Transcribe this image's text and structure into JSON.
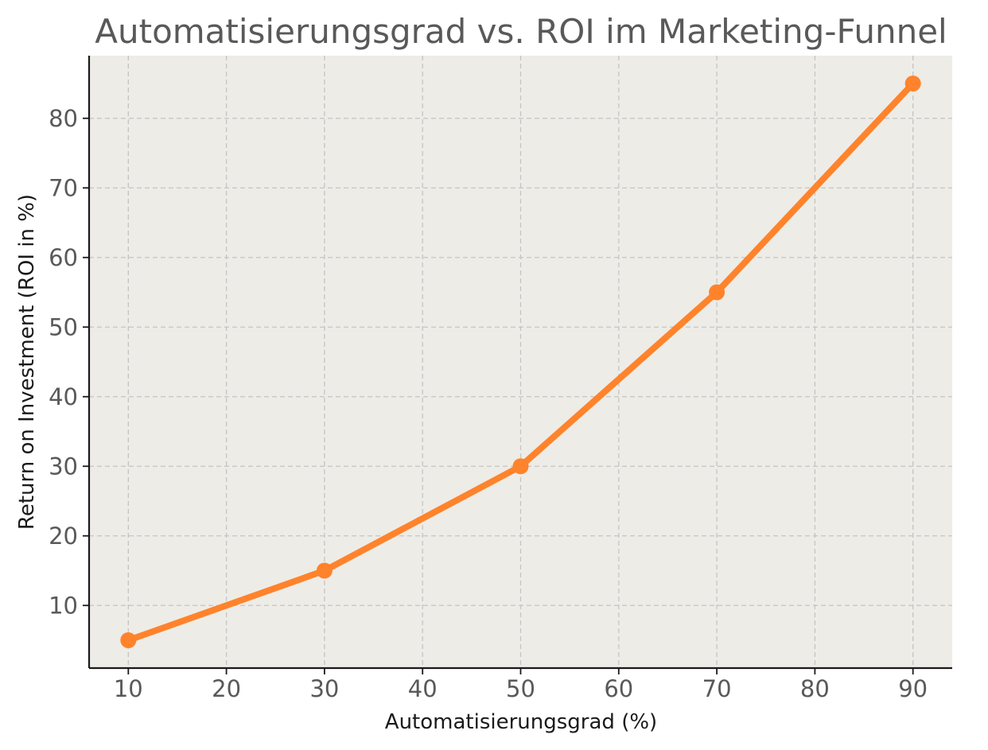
{
  "chart_data": {
    "type": "line",
    "title": "Automatisierungsgrad vs. ROI im Marketing-Funnel",
    "xlabel": "Automatisierungsgrad (%)",
    "ylabel": "Return on Investment (ROI in %)",
    "x": [
      10,
      30,
      50,
      70,
      90
    ],
    "series": [
      {
        "values": [
          5,
          15,
          30,
          55,
          85
        ]
      }
    ],
    "xlim": [
      6,
      94
    ],
    "ylim": [
      1,
      89
    ],
    "xticks": [
      10,
      20,
      30,
      40,
      50,
      60,
      70,
      80,
      90
    ],
    "yticks": [
      10,
      20,
      30,
      40,
      50,
      60,
      70,
      80
    ],
    "grid": true,
    "colors": {
      "line": "#ff832b",
      "plot_background": "#eeece7",
      "grid": "#c4c4c4",
      "text": "#595959"
    }
  }
}
